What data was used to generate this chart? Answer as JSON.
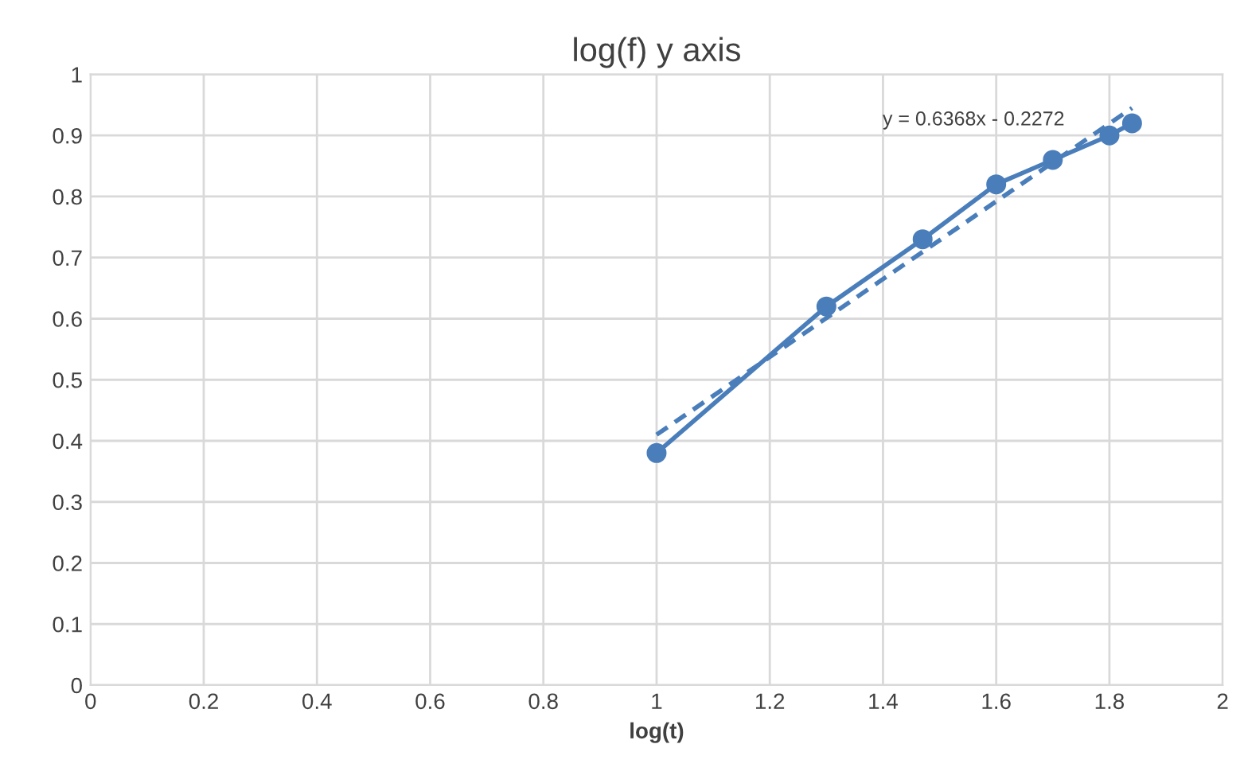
{
  "chart_data": {
    "type": "line",
    "title": "log(f) y axis",
    "xlabel": "log(t)",
    "x": [
      1,
      1.3,
      1.47,
      1.6,
      1.7,
      1.8,
      1.84
    ],
    "series": [
      {
        "color": "#4a7ebb",
        "values": [
          0.38,
          0.62,
          0.73,
          0.82,
          0.86,
          0.9,
          0.92
        ],
        "marker": "circle",
        "line_style": "solid"
      },
      {
        "color": "#4a7ebb",
        "x": [
          1,
          1.84
        ],
        "values": [
          0.41,
          0.945
        ],
        "marker": "none",
        "line_style": "dashed"
      }
    ],
    "annotations": [
      "y = 0.6368x - 0.2272"
    ],
    "xlim": [
      0,
      2
    ],
    "xticks": [
      0,
      0.2,
      0.4,
      0.6,
      0.8,
      1,
      1.2,
      1.4,
      1.6,
      1.8,
      2
    ],
    "ylim": [
      0,
      1
    ],
    "yticks": [
      0,
      0.1,
      0.2,
      0.3,
      0.4,
      0.5,
      0.6,
      0.7,
      0.8,
      0.9,
      1
    ],
    "grid": true,
    "legend": false
  }
}
